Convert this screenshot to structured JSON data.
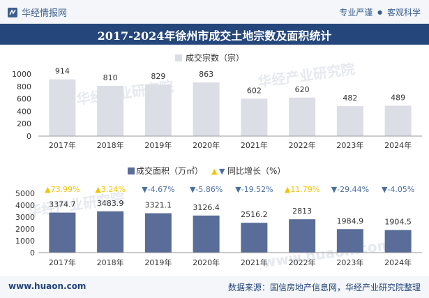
{
  "header": {
    "logo_text": "华经情报网",
    "slogan_left": "专业严谨",
    "slogan_dot": "●",
    "slogan_right": "客观科学"
  },
  "title": "2017-2024年徐州市成交土地宗数及面积统计",
  "watermarks": [
    "华经产业研究院",
    "华经产业研究院",
    "华经产业研究院",
    "www.huaon.com"
  ],
  "footer": {
    "website": "www.huaon.com",
    "source": "数据来源：国信房地产信息网，华经产业研究院整理"
  },
  "colors": {
    "bar_top": "#dcdee6",
    "bar_bottom": "#5a6c98",
    "up": "#f5c400",
    "down": "#4a6fa0",
    "title_bg": "#24467a"
  },
  "chart_data": [
    {
      "type": "bar",
      "title": "成交宗数（宗）",
      "legend_position": "top-center",
      "categories": [
        "2017年",
        "2018年",
        "2019年",
        "2020年",
        "2021年",
        "2022年",
        "2023年",
        "2024年"
      ],
      "values": [
        914,
        810,
        829,
        863,
        602,
        620,
        482,
        489
      ],
      "ylim": [
        0,
        1000
      ],
      "yticks": [
        0,
        200,
        400,
        600,
        800,
        1000
      ]
    },
    {
      "type": "bar",
      "legend_position": "top-center",
      "series": [
        {
          "name": "成交面积（万㎡）",
          "values": [
            3374.7,
            3483.9,
            3321.1,
            3126.4,
            2516.2,
            2813,
            1984.9,
            1904.5
          ]
        }
      ],
      "categories": [
        "2017年",
        "2018年",
        "2019年",
        "2020年",
        "2021年",
        "2022年",
        "2023年",
        "2024年"
      ],
      "growth": {
        "name": "同比增长（%）",
        "labels": [
          "73.99%",
          "3.24%",
          "-4.67%",
          "-5.86%",
          "-19.52%",
          "11.79%",
          "-29.44%",
          "-4.05%"
        ],
        "directions": [
          "up",
          "up",
          "down",
          "down",
          "down",
          "up",
          "down",
          "down"
        ]
      },
      "value_labels": [
        "3374.7",
        "3483.9",
        "3321.1",
        "3126.4",
        "2516.2",
        "2813",
        "1984.9",
        "1904.5"
      ],
      "ylim": [
        0,
        5000
      ],
      "yticks": [
        0,
        1000,
        2000,
        3000,
        4000,
        5000
      ]
    }
  ]
}
